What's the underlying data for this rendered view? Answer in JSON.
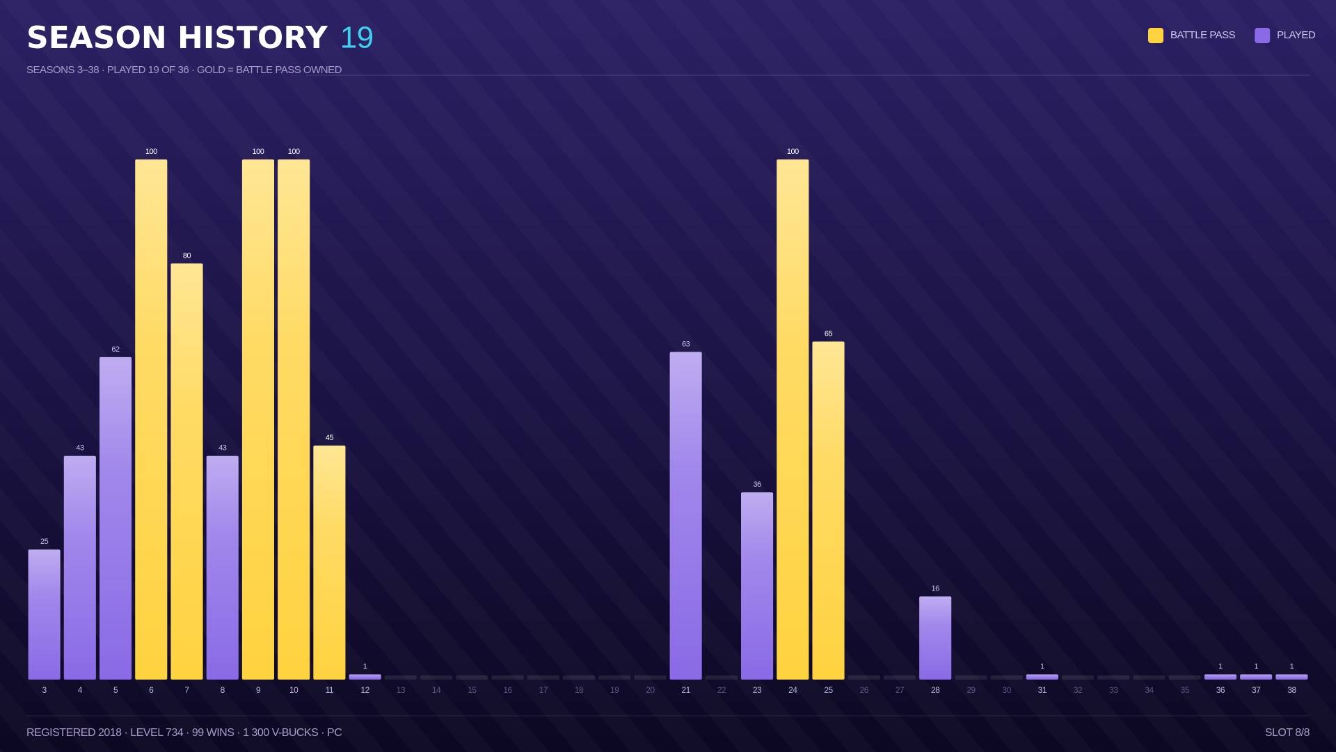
{
  "header": {
    "title": "SEASON HISTORY",
    "count": "19",
    "subtitle": "SEASONS 3–38 · PLAYED 19 OF 36 · GOLD = BATTLE PASS OWNED"
  },
  "chart_data": {
    "type": "bar",
    "categories": [
      3,
      4,
      5,
      6,
      7,
      8,
      9,
      10,
      11,
      12,
      13,
      14,
      15,
      16,
      17,
      18,
      19,
      20,
      21,
      22,
      23,
      24,
      25,
      26,
      27,
      28,
      29,
      30,
      31,
      32,
      33,
      34,
      35,
      36,
      37,
      38
    ],
    "series": [
      {
        "name": "BATTLE PASS",
        "color": "#ffd23f",
        "values": [
          null,
          null,
          null,
          100,
          80,
          null,
          100,
          100,
          45,
          null,
          null,
          null,
          null,
          null,
          null,
          null,
          null,
          null,
          null,
          null,
          null,
          100,
          65,
          null,
          null,
          null,
          null,
          null,
          null,
          null,
          null,
          null,
          null,
          null,
          null,
          null
        ]
      },
      {
        "name": "PLAYED",
        "color": "#8a6ae6",
        "values": [
          25,
          43,
          62,
          null,
          null,
          43,
          null,
          null,
          null,
          1,
          null,
          null,
          null,
          null,
          null,
          null,
          null,
          null,
          63,
          null,
          36,
          null,
          null,
          null,
          null,
          16,
          null,
          null,
          1,
          null,
          null,
          null,
          null,
          1,
          1,
          1
        ]
      }
    ]
  },
  "footer": {
    "info": "REGISTERED 2018 · LEVEL 734 · 99 WINS · 1 300 V-BUCKS · PC",
    "slot": "SLOT 8/8"
  }
}
